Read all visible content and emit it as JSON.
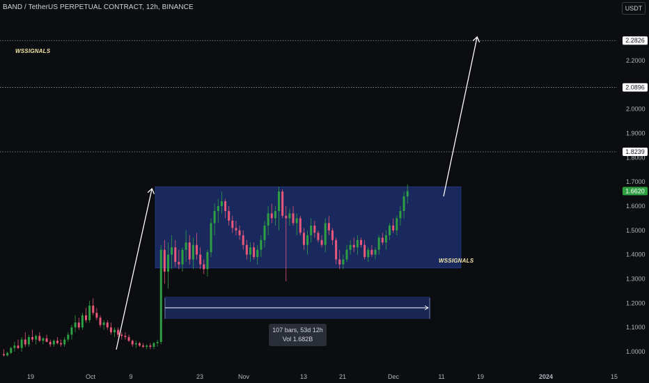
{
  "header": {
    "title": "BAND / TetherUS PERPETUAL CONTRACT, 12h, BINANCE",
    "currency": "USDT"
  },
  "watermark": {
    "text": "WSSIGNALS"
  },
  "info_box": {
    "bars": "107 bars, 53d 12h",
    "vol": "Vol 1.682B"
  },
  "colors": {
    "background": "#0c0d10",
    "up": "#2ea043",
    "down": "#e8587a",
    "range_box": "#1d2f6b",
    "current_price_badge": "#2ea043",
    "projection_arrow": "#ffffff"
  },
  "chart_data": {
    "type": "candlestick",
    "title": "BAND / TetherUS PERPETUAL CONTRACT, 12h, BINANCE",
    "y_axis": {
      "ticks": [
        1.0,
        1.1,
        1.2,
        1.3,
        1.4,
        1.5,
        1.6,
        1.7,
        1.8,
        1.9,
        2.0,
        2.1,
        2.2
      ],
      "tick_labels": [
        "1.0000",
        "1.1000",
        "1.2000",
        "1.3000",
        "1.4000",
        "1.5000",
        "1.6000",
        "1.7000",
        "1.8000",
        "1.9000",
        "2.0000",
        "2.2000"
      ],
      "range": [
        0.95,
        2.3
      ]
    },
    "x_axis": {
      "tick_labels": [
        "19",
        "Oct",
        "9",
        "23",
        "Nov",
        "13",
        "21",
        "Dec",
        "11",
        "19",
        "2024",
        "15"
      ]
    },
    "price_lines": [
      {
        "value": 2.2826,
        "label": "2.2826"
      },
      {
        "value": 2.0896,
        "label": "2.0896"
      },
      {
        "value": 1.8239,
        "label": "1.8239"
      }
    ],
    "current_price": {
      "value": 1.662,
      "label": "1.6620"
    },
    "range_box": {
      "low": 1.345,
      "high": 1.68
    },
    "measure": {
      "bars": 107,
      "duration": "53d 12h",
      "volume": "1.682B"
    },
    "candles": [
      [
        0.99,
        0.98,
        1.01,
        0.985
      ],
      [
        0.985,
        0.98,
        1.0,
        0.995
      ],
      [
        0.995,
        0.99,
        1.02,
        1.015
      ],
      [
        1.015,
        1.0,
        1.04,
        1.025
      ],
      [
        1.025,
        1.01,
        1.05,
        1.015
      ],
      [
        1.015,
        1.0,
        1.06,
        1.05
      ],
      [
        1.05,
        1.02,
        1.08,
        1.03
      ],
      [
        1.03,
        1.02,
        1.07,
        1.06
      ],
      [
        1.06,
        1.04,
        1.09,
        1.05
      ],
      [
        1.05,
        1.03,
        1.07,
        1.065
      ],
      [
        1.065,
        1.04,
        1.08,
        1.045
      ],
      [
        1.045,
        1.03,
        1.06,
        1.055
      ],
      [
        1.055,
        1.04,
        1.07,
        1.04
      ],
      [
        1.04,
        1.02,
        1.05,
        1.03
      ],
      [
        1.03,
        1.02,
        1.05,
        1.045
      ],
      [
        1.045,
        1.03,
        1.06,
        1.035
      ],
      [
        1.035,
        1.02,
        1.05,
        1.03
      ],
      [
        1.03,
        1.02,
        1.06,
        1.05
      ],
      [
        1.05,
        1.04,
        1.08,
        1.07
      ],
      [
        1.07,
        1.05,
        1.11,
        1.1
      ],
      [
        1.1,
        1.08,
        1.15,
        1.12
      ],
      [
        1.12,
        1.09,
        1.14,
        1.1
      ],
      [
        1.1,
        1.09,
        1.16,
        1.15
      ],
      [
        1.15,
        1.12,
        1.18,
        1.13
      ],
      [
        1.13,
        1.12,
        1.21,
        1.19
      ],
      [
        1.19,
        1.15,
        1.22,
        1.16
      ],
      [
        1.16,
        1.13,
        1.18,
        1.14
      ],
      [
        1.14,
        1.1,
        1.15,
        1.11
      ],
      [
        1.11,
        1.09,
        1.13,
        1.12
      ],
      [
        1.12,
        1.09,
        1.13,
        1.1
      ],
      [
        1.1,
        1.07,
        1.12,
        1.08
      ],
      [
        1.08,
        1.06,
        1.1,
        1.09
      ],
      [
        1.09,
        1.06,
        1.1,
        1.07
      ],
      [
        1.07,
        1.05,
        1.08,
        1.065
      ],
      [
        1.065,
        1.05,
        1.08,
        1.06
      ],
      [
        1.06,
        1.04,
        1.07,
        1.045
      ],
      [
        1.045,
        1.02,
        1.05,
        1.03
      ],
      [
        1.03,
        1.015,
        1.045,
        1.035
      ],
      [
        1.035,
        1.02,
        1.04,
        1.025
      ],
      [
        1.025,
        1.015,
        1.035,
        1.02
      ],
      [
        1.02,
        1.01,
        1.03,
        1.025
      ],
      [
        1.025,
        1.01,
        1.035,
        1.02
      ],
      [
        1.02,
        1.01,
        1.04,
        1.035
      ],
      [
        1.035,
        1.02,
        1.05,
        1.04
      ],
      [
        1.04,
        1.03,
        1.44,
        1.42
      ],
      [
        1.42,
        1.28,
        1.46,
        1.33
      ],
      [
        1.33,
        1.26,
        1.45,
        1.4
      ],
      [
        1.4,
        1.34,
        1.48,
        1.43
      ],
      [
        1.43,
        1.35,
        1.46,
        1.37
      ],
      [
        1.37,
        1.34,
        1.42,
        1.36
      ],
      [
        1.36,
        1.33,
        1.43,
        1.42
      ],
      [
        1.42,
        1.37,
        1.5,
        1.45
      ],
      [
        1.45,
        1.36,
        1.48,
        1.38
      ],
      [
        1.38,
        1.34,
        1.47,
        1.44
      ],
      [
        1.44,
        1.38,
        1.49,
        1.4
      ],
      [
        1.4,
        1.34,
        1.43,
        1.36
      ],
      [
        1.36,
        1.32,
        1.38,
        1.34
      ],
      [
        1.34,
        1.31,
        1.42,
        1.41
      ],
      [
        1.41,
        1.39,
        1.55,
        1.53
      ],
      [
        1.53,
        1.48,
        1.61,
        1.58
      ],
      [
        1.58,
        1.53,
        1.63,
        1.6
      ],
      [
        1.6,
        1.57,
        1.66,
        1.62
      ],
      [
        1.62,
        1.55,
        1.63,
        1.58
      ],
      [
        1.58,
        1.52,
        1.6,
        1.54
      ],
      [
        1.54,
        1.49,
        1.56,
        1.51
      ],
      [
        1.51,
        1.48,
        1.54,
        1.5
      ],
      [
        1.5,
        1.46,
        1.52,
        1.48
      ],
      [
        1.48,
        1.42,
        1.5,
        1.44
      ],
      [
        1.44,
        1.38,
        1.46,
        1.4
      ],
      [
        1.4,
        1.37,
        1.45,
        1.43
      ],
      [
        1.43,
        1.38,
        1.45,
        1.39
      ],
      [
        1.39,
        1.36,
        1.44,
        1.42
      ],
      [
        1.42,
        1.39,
        1.48,
        1.46
      ],
      [
        1.46,
        1.43,
        1.54,
        1.52
      ],
      [
        1.52,
        1.48,
        1.6,
        1.57
      ],
      [
        1.57,
        1.53,
        1.61,
        1.55
      ],
      [
        1.55,
        1.52,
        1.6,
        1.58
      ],
      [
        1.58,
        1.5,
        1.68,
        1.66
      ],
      [
        1.66,
        1.55,
        1.67,
        1.56
      ],
      [
        1.56,
        1.29,
        1.6,
        1.55
      ],
      [
        1.55,
        1.52,
        1.59,
        1.57
      ],
      [
        1.57,
        1.52,
        1.6,
        1.53
      ],
      [
        1.53,
        1.48,
        1.57,
        1.55
      ],
      [
        1.55,
        1.48,
        1.56,
        1.49
      ],
      [
        1.49,
        1.42,
        1.51,
        1.44
      ],
      [
        1.44,
        1.4,
        1.5,
        1.48
      ],
      [
        1.48,
        1.45,
        1.55,
        1.52
      ],
      [
        1.52,
        1.47,
        1.54,
        1.49
      ],
      [
        1.49,
        1.45,
        1.5,
        1.46
      ],
      [
        1.46,
        1.43,
        1.48,
        1.44
      ],
      [
        1.44,
        1.41,
        1.55,
        1.53
      ],
      [
        1.53,
        1.48,
        1.56,
        1.5
      ],
      [
        1.5,
        1.44,
        1.51,
        1.46
      ],
      [
        1.46,
        1.36,
        1.47,
        1.38
      ],
      [
        1.38,
        1.34,
        1.42,
        1.36
      ],
      [
        1.36,
        1.34,
        1.4,
        1.38
      ],
      [
        1.38,
        1.37,
        1.44,
        1.42
      ],
      [
        1.42,
        1.4,
        1.46,
        1.44
      ],
      [
        1.44,
        1.41,
        1.47,
        1.43
      ],
      [
        1.43,
        1.4,
        1.48,
        1.46
      ],
      [
        1.46,
        1.43,
        1.47,
        1.44
      ],
      [
        1.44,
        1.38,
        1.46,
        1.39
      ],
      [
        1.39,
        1.37,
        1.43,
        1.42
      ],
      [
        1.42,
        1.39,
        1.44,
        1.4
      ],
      [
        1.4,
        1.38,
        1.43,
        1.42
      ],
      [
        1.42,
        1.4,
        1.48,
        1.47
      ],
      [
        1.47,
        1.44,
        1.49,
        1.45
      ],
      [
        1.45,
        1.42,
        1.5,
        1.48
      ],
      [
        1.48,
        1.46,
        1.53,
        1.52
      ],
      [
        1.52,
        1.49,
        1.55,
        1.5
      ],
      [
        1.5,
        1.48,
        1.56,
        1.55
      ],
      [
        1.55,
        1.52,
        1.6,
        1.58
      ],
      [
        1.58,
        1.55,
        1.66,
        1.64
      ],
      [
        1.64,
        1.61,
        1.69,
        1.662
      ]
    ]
  }
}
